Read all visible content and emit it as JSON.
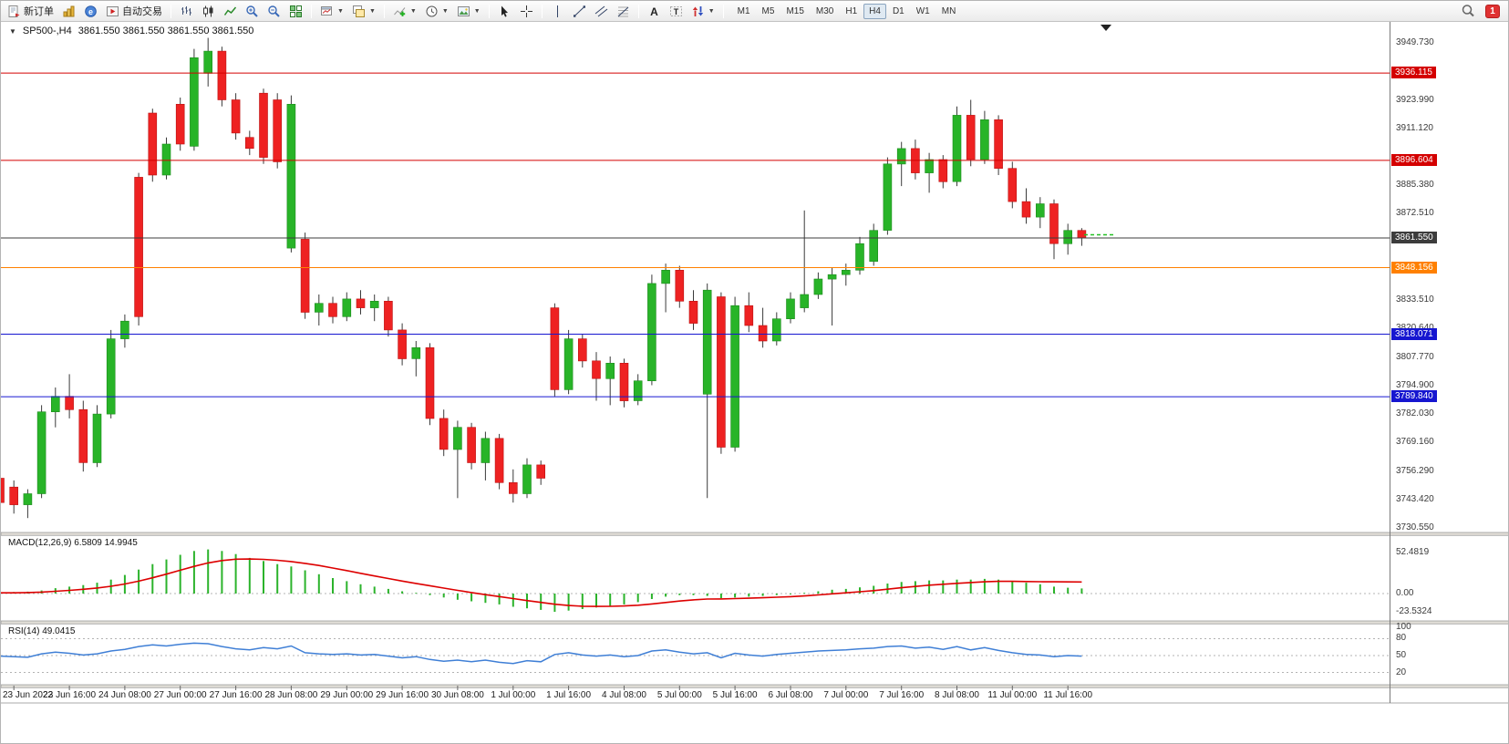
{
  "toolbar": {
    "new_order": "新订单",
    "auto_trading": "自动交易",
    "timeframes": [
      "M1",
      "M5",
      "M15",
      "M30",
      "H1",
      "H4",
      "D1",
      "W1",
      "MN"
    ],
    "active_timeframe": "H4",
    "notification_count": "1",
    "icons": [
      "new-order",
      "market-depth",
      "metaeditor",
      "auto-trading",
      "bar-chart",
      "candlestick-chart",
      "line-chart",
      "zoom-in",
      "zoom-out",
      "tile-windows",
      "new-chart",
      "profiles",
      "indicators",
      "periods",
      "templates",
      "cursor",
      "crosshair",
      "vertical-line",
      "trendline",
      "equidistant-channel",
      "fibonacci",
      "text",
      "text-label",
      "arrows",
      "search",
      "notifications"
    ]
  },
  "chart_header": {
    "symbol": "SP500-,H4",
    "ohlc": "3861.550 3861.550 3861.550 3861.550"
  },
  "macd_panel": {
    "title": "MACD(12,26,9)",
    "values": "6.5809 14.9945"
  },
  "rsi_panel": {
    "title": "RSI(14)",
    "value": "49.0415"
  },
  "chart_data": [
    {
      "type": "candlestick",
      "symbol": "SP500-",
      "timeframe": "H4",
      "ylim": [
        3730.55,
        3958.8
      ],
      "y_ticks": [
        "3949.730",
        "3923.990",
        "3911.120",
        "3885.380",
        "3872.510",
        "3833.510",
        "3820.640",
        "3807.770",
        "3794.900",
        "3782.030",
        "3769.160",
        "3756.290",
        "3743.420",
        "3730.550"
      ],
      "levels": [
        {
          "value": 3936.115,
          "label": "3936.115",
          "color": "#d40000"
        },
        {
          "value": 3896.604,
          "label": "3896.604",
          "color": "#d40000"
        },
        {
          "value": 3861.55,
          "label": "3861.550",
          "color": "#3c3c3c"
        },
        {
          "value": 3848.156,
          "label": "3848.156",
          "color": "#ff8000"
        },
        {
          "value": 3818.071,
          "label": "3818.071",
          "color": "#1616d0"
        },
        {
          "value": 3789.84,
          "label": "3789.840",
          "color": "#1616d0"
        }
      ],
      "x_labels": [
        "23 Jun 2022",
        "23 Jun 16:00",
        "24 Jun 08:00",
        "27 Jun 00:00",
        "27 Jun 16:00",
        "28 Jun 08:00",
        "29 Jun 00:00",
        "29 Jun 16:00",
        "30 Jun 08:00",
        "1 Jul 00:00",
        "1 Jul 16:00",
        "4 Jul 08:00",
        "5 Jul 00:00",
        "5 Jul 16:00",
        "6 Jul 08:00",
        "7 Jul 00:00",
        "7 Jul 16:00",
        "8 Jul 08:00",
        "11 Jul 00:00",
        "11 Jul 16:00"
      ],
      "candles": [
        [
          3753,
          3756,
          3738,
          3742
        ],
        [
          3749,
          3752,
          3737,
          3741
        ],
        [
          3741,
          3748,
          3735,
          3746
        ],
        [
          3746,
          3786,
          3744,
          3783
        ],
        [
          3783,
          3794,
          3776,
          3790
        ],
        [
          3790,
          3800,
          3780,
          3784
        ],
        [
          3784,
          3788,
          3756,
          3760
        ],
        [
          3760,
          3786,
          3758,
          3782
        ],
        [
          3782,
          3820,
          3780,
          3816
        ],
        [
          3816,
          3827,
          3812,
          3824
        ],
        [
          3889,
          3891,
          3822,
          3826
        ],
        [
          3918,
          3920,
          3887,
          3890
        ],
        [
          3890,
          3907,
          3888,
          3904
        ],
        [
          3922,
          3925,
          3901,
          3904
        ],
        [
          3903,
          3947,
          3901,
          3943
        ],
        [
          3936,
          3952,
          3930,
          3946
        ],
        [
          3946,
          3948,
          3921,
          3924
        ],
        [
          3924,
          3927,
          3906,
          3909
        ],
        [
          3907,
          3910,
          3899,
          3902
        ],
        [
          3927,
          3929,
          3895,
          3898
        ],
        [
          3924,
          3927,
          3893,
          3896
        ],
        [
          3857,
          3926,
          3855,
          3922
        ],
        [
          3861,
          3864,
          3825,
          3828
        ],
        [
          3828,
          3836,
          3822,
          3832
        ],
        [
          3832,
          3835,
          3823,
          3826
        ],
        [
          3826,
          3837,
          3824,
          3834
        ],
        [
          3834,
          3838,
          3827,
          3830
        ],
        [
          3830,
          3836,
          3824,
          3833
        ],
        [
          3833,
          3835,
          3817,
          3820
        ],
        [
          3820,
          3823,
          3804,
          3807
        ],
        [
          3807,
          3815,
          3799,
          3812
        ],
        [
          3812,
          3814,
          3777,
          3780
        ],
        [
          3780,
          3784,
          3763,
          3766
        ],
        [
          3766,
          3779,
          3744,
          3776
        ],
        [
          3776,
          3778,
          3757,
          3760
        ],
        [
          3760,
          3774,
          3752,
          3771
        ],
        [
          3771,
          3773,
          3748,
          3751
        ],
        [
          3751,
          3757,
          3742,
          3746
        ],
        [
          3746,
          3762,
          3744,
          3759
        ],
        [
          3759,
          3761,
          3750,
          3753
        ],
        [
          3830,
          3832,
          3790,
          3793
        ],
        [
          3793,
          3820,
          3791,
          3816
        ],
        [
          3816,
          3818,
          3803,
          3806
        ],
        [
          3806,
          3810,
          3788,
          3798
        ],
        [
          3798,
          3808,
          3786,
          3805
        ],
        [
          3805,
          3807,
          3785,
          3788
        ],
        [
          3788,
          3800,
          3786,
          3797
        ],
        [
          3797,
          3845,
          3795,
          3841
        ],
        [
          3841,
          3850,
          3828,
          3847
        ],
        [
          3847,
          3849,
          3830,
          3833
        ],
        [
          3833,
          3838,
          3820,
          3823
        ],
        [
          3791,
          3841,
          3744,
          3838
        ],
        [
          3835,
          3837,
          3764,
          3767
        ],
        [
          3767,
          3835,
          3765,
          3831
        ],
        [
          3831,
          3837,
          3819,
          3822
        ],
        [
          3822,
          3830,
          3812,
          3815
        ],
        [
          3815,
          3828,
          3813,
          3825
        ],
        [
          3825,
          3837,
          3823,
          3834
        ],
        [
          3830,
          3874,
          3828,
          3836
        ],
        [
          3836,
          3846,
          3834,
          3843
        ],
        [
          3843,
          3848,
          3822,
          3845
        ],
        [
          3845,
          3850,
          3840,
          3847
        ],
        [
          3847,
          3862,
          3845,
          3859
        ],
        [
          3851,
          3868,
          3849,
          3865
        ],
        [
          3865,
          3898,
          3863,
          3895
        ],
        [
          3895,
          3905,
          3885,
          3902
        ],
        [
          3902,
          3906,
          3888,
          3891
        ],
        [
          3891,
          3900,
          3882,
          3897
        ],
        [
          3897,
          3899,
          3884,
          3887
        ],
        [
          3887,
          3921,
          3885,
          3917
        ],
        [
          3917,
          3924,
          3894,
          3897
        ],
        [
          3897,
          3919,
          3895,
          3915
        ],
        [
          3915,
          3917,
          3890,
          3893
        ],
        [
          3893,
          3896,
          3875,
          3878
        ],
        [
          3878,
          3884,
          3868,
          3871
        ],
        [
          3871,
          3880,
          3866,
          3877
        ],
        [
          3877,
          3879,
          3852,
          3859
        ],
        [
          3859,
          3868,
          3854,
          3865
        ],
        [
          3865,
          3866,
          3858,
          3861.55
        ]
      ]
    },
    {
      "type": "macd",
      "title": "MACD(12,26,9)",
      "value": 6.5809,
      "signal_value": 14.9945,
      "axis_ticks": [
        "52.4819",
        "0.00",
        "-23.5324"
      ],
      "histogram": [
        2,
        2,
        2.5,
        4,
        7,
        9,
        11,
        14,
        18,
        24,
        31,
        38,
        44,
        50,
        55,
        57,
        55,
        51,
        46,
        42,
        38,
        35,
        30,
        25,
        20,
        16,
        12,
        9,
        6,
        3,
        1,
        -2,
        -5,
        -8,
        -10,
        -12,
        -14,
        -17,
        -19,
        -21,
        -23.5,
        -22,
        -20,
        -18,
        -16,
        -14,
        -11,
        -7,
        -4,
        -2,
        -2,
        -3,
        -6,
        -5,
        -4,
        -3,
        -2,
        -1,
        1,
        3,
        5,
        6,
        8,
        10,
        13,
        15,
        16,
        17,
        17,
        18,
        18,
        19,
        18,
        16,
        14,
        12,
        9,
        7.5,
        6.58
      ],
      "signal_line": [
        0.9,
        1,
        1.3,
        1.9,
        2.9,
        4.1,
        5.5,
        7.2,
        9.4,
        12.3,
        16,
        20.4,
        25.1,
        30.1,
        35.1,
        39.5,
        42.6,
        44.3,
        44.6,
        44.1,
        42.9,
        41.3,
        39,
        36.2,
        33,
        29.6,
        26.1,
        22.7,
        19.4,
        16.1,
        13.1,
        10.1,
        7.1,
        4.1,
        1.3,
        -1.4,
        -3.9,
        -6.5,
        -9,
        -11.4,
        -13.8,
        -15.4,
        -16.3,
        -16.6,
        -16.5,
        -16,
        -15,
        -13.4,
        -11.5,
        -9.6,
        -8.1,
        -7.1,
        -6.9,
        -6.5,
        -6,
        -5.4,
        -4.7,
        -4,
        -3,
        -1.8,
        -0.4,
        0.9,
        2.3,
        3.8,
        5.6,
        7.5,
        9.2,
        10.8,
        12,
        13.2,
        14.2,
        15.2,
        15.8,
        15.8,
        15.5,
        15.3,
        15.2,
        15.1,
        14.99
      ]
    },
    {
      "type": "rsi",
      "title": "RSI(14)",
      "value": 49.0415,
      "axis_ticks": [
        "100",
        "80",
        "50",
        "20"
      ],
      "guides": [
        80,
        50,
        20
      ],
      "values": [
        49,
        48,
        47,
        53,
        56,
        54,
        51,
        53,
        58,
        61,
        66,
        69,
        67,
        70,
        72,
        71,
        66,
        62,
        60,
        64,
        62,
        67,
        55,
        53,
        52,
        53,
        51,
        52,
        49,
        46,
        48,
        43,
        40,
        42,
        39,
        42,
        38,
        36,
        41,
        39,
        52,
        55,
        51,
        49,
        51,
        48,
        50,
        58,
        60,
        56,
        53,
        55,
        46,
        54,
        51,
        49,
        52,
        54,
        56,
        58,
        59,
        60,
        62,
        63,
        66,
        67,
        63,
        65,
        61,
        66,
        60,
        64,
        59,
        55,
        52,
        51,
        48,
        50,
        49.04
      ]
    }
  ]
}
